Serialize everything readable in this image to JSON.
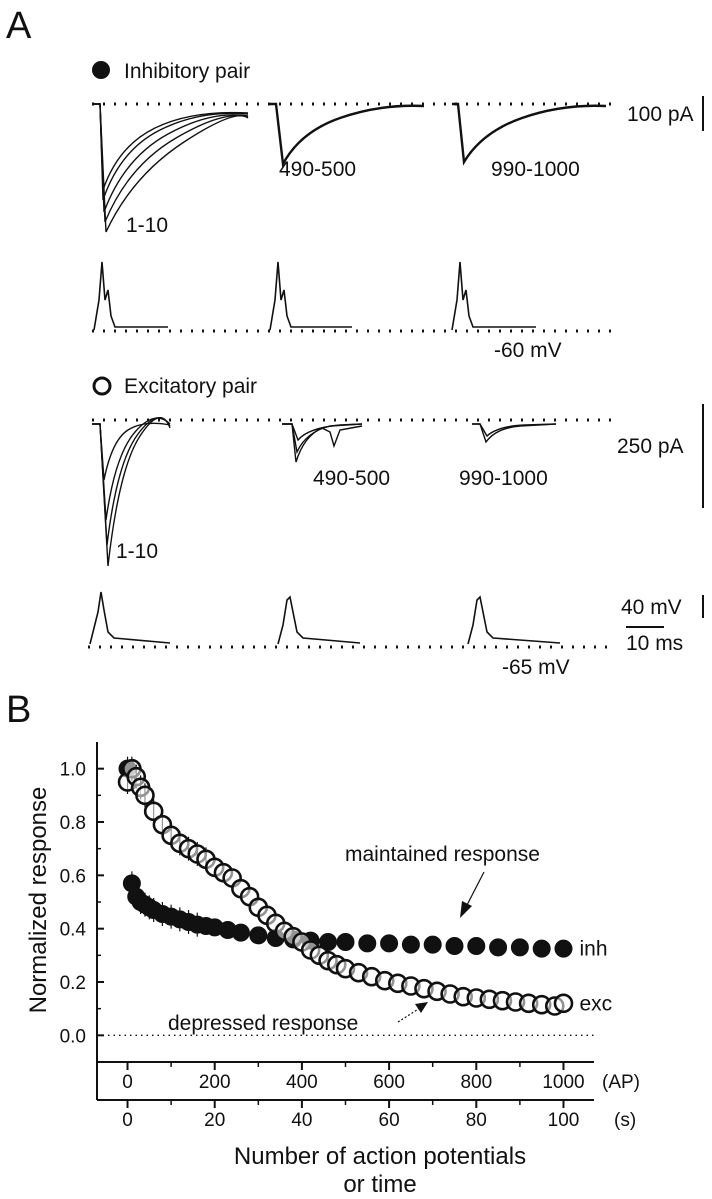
{
  "panel_a": {
    "letter": "A",
    "inhibitory": {
      "legend": "Inhibitory pair",
      "current_labels": [
        "1-10",
        "490-500",
        "990-1000"
      ],
      "current_scale": "100 pA",
      "voltage_label": "-60 mV"
    },
    "excitatory": {
      "legend": "Excitatory pair",
      "current_labels": [
        "1-10",
        "490-500",
        "990-1000"
      ],
      "current_scale": "250 pA",
      "voltage_label": "-65 mV",
      "voltage_scale": "40 mV",
      "time_scale": "10 ms"
    }
  },
  "chart_data": {
    "type": "scatter",
    "panel": "B",
    "ylabel": "Normalized response",
    "xlabel_line1": "Number of action potentials",
    "xlabel_line2": "or time",
    "x_axis_ap": {
      "ticks": [
        0,
        200,
        400,
        600,
        800,
        1000
      ],
      "unit": "(AP)"
    },
    "x_axis_time": {
      "ticks": [
        0,
        20,
        40,
        60,
        80,
        100
      ],
      "unit": "(s)"
    },
    "xlim": [
      -70,
      1070
    ],
    "ylim": [
      -0.1,
      1.1
    ],
    "yticks": [
      "0.0",
      "0.2",
      "0.4",
      "0.6",
      "0.8",
      "1.0"
    ],
    "baseline": 0,
    "annotations": {
      "maintained": "maintained response",
      "depressed": "depressed response"
    },
    "series": [
      {
        "name": "inh",
        "marker": "filled-circle",
        "x": [
          0,
          10,
          20,
          30,
          40,
          50,
          60,
          80,
          100,
          120,
          140,
          160,
          180,
          200,
          230,
          260,
          300,
          340,
          380,
          420,
          460,
          500,
          550,
          600,
          650,
          700,
          750,
          800,
          850,
          900,
          950,
          1000
        ],
        "y": [
          1.0,
          0.57,
          0.52,
          0.5,
          0.49,
          0.48,
          0.47,
          0.455,
          0.445,
          0.435,
          0.425,
          0.415,
          0.41,
          0.405,
          0.395,
          0.385,
          0.375,
          0.365,
          0.36,
          0.355,
          0.35,
          0.35,
          0.345,
          0.345,
          0.34,
          0.34,
          0.335,
          0.335,
          0.33,
          0.33,
          0.325,
          0.325
        ]
      },
      {
        "name": "exc",
        "marker": "open-circle",
        "x": [
          0,
          10,
          20,
          30,
          40,
          60,
          80,
          100,
          120,
          140,
          160,
          180,
          200,
          220,
          240,
          260,
          280,
          300,
          320,
          340,
          360,
          380,
          400,
          420,
          440,
          460,
          480,
          500,
          530,
          560,
          590,
          620,
          650,
          680,
          710,
          740,
          770,
          800,
          830,
          860,
          890,
          920,
          950,
          980,
          1000
        ],
        "y": [
          0.95,
          1.0,
          0.97,
          0.93,
          0.9,
          0.84,
          0.79,
          0.75,
          0.72,
          0.7,
          0.68,
          0.66,
          0.63,
          0.61,
          0.59,
          0.55,
          0.52,
          0.48,
          0.45,
          0.42,
          0.39,
          0.37,
          0.35,
          0.32,
          0.3,
          0.28,
          0.265,
          0.25,
          0.235,
          0.22,
          0.205,
          0.195,
          0.185,
          0.175,
          0.165,
          0.155,
          0.145,
          0.14,
          0.135,
          0.13,
          0.125,
          0.12,
          0.115,
          0.11,
          0.12
        ]
      }
    ]
  }
}
